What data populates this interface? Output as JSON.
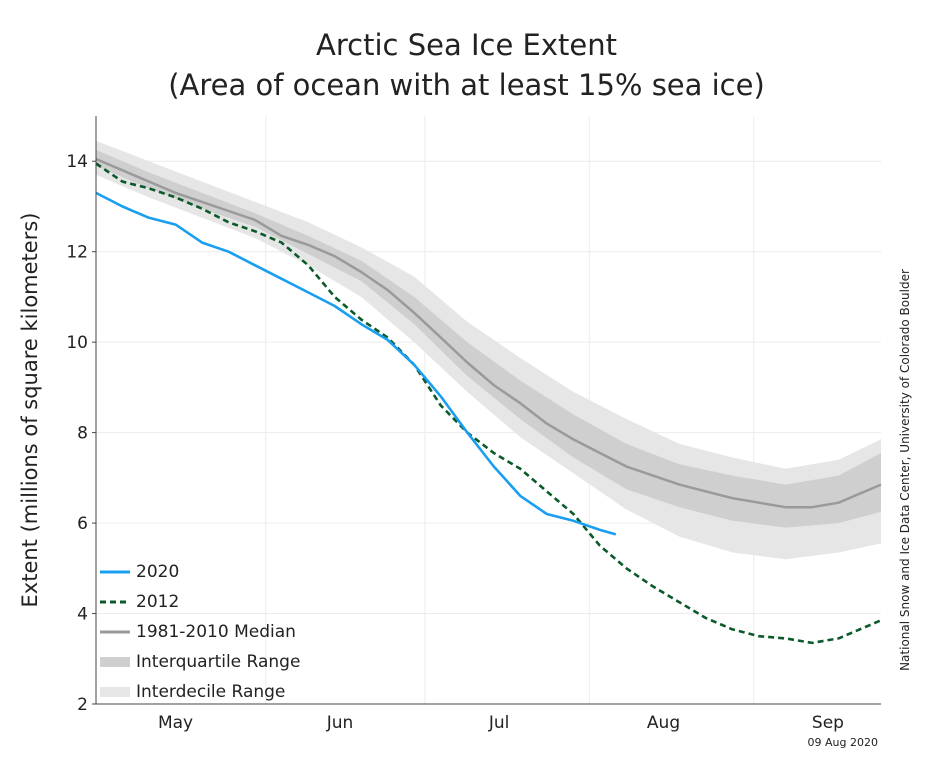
{
  "chart_data": {
    "type": "line",
    "title": "Arctic Sea Ice Extent",
    "subtitle": "(Area of ocean with at least 15% sea ice)",
    "ylabel": "Extent (millions of square kilometers)",
    "ylim": [
      2,
      15
    ],
    "yticks": [
      2,
      4,
      6,
      8,
      10,
      12,
      14
    ],
    "x_unit": "day of year",
    "xlim": [
      120,
      268
    ],
    "month_ticks": [
      {
        "label": "May",
        "day": 135
      },
      {
        "label": "Jun",
        "day": 166
      },
      {
        "label": "Jul",
        "day": 196
      },
      {
        "label": "Aug",
        "day": 227
      },
      {
        "label": "Sep",
        "day": 258
      }
    ],
    "month_boundaries": [
      152,
      182,
      213,
      244
    ],
    "colors": {
      "2020": "#1a9ff0",
      "2012": "#0b5a2a",
      "median": "#9a9a9a",
      "iqr": "#cfcfcf",
      "idr": "#e6e6e6",
      "grid": "#ececec"
    },
    "series": [
      {
        "name": "2020",
        "style": "solid",
        "x": [
          120,
          125,
          130,
          135,
          140,
          145,
          150,
          155,
          160,
          165,
          170,
          175,
          180,
          185,
          190,
          195,
          200,
          205,
          210,
          215,
          218
        ],
        "values": [
          13.3,
          13.0,
          12.75,
          12.6,
          12.2,
          12.0,
          11.7,
          11.4,
          11.1,
          10.8,
          10.4,
          10.05,
          9.5,
          8.8,
          8.0,
          7.25,
          6.6,
          6.2,
          6.05,
          5.85,
          5.75
        ]
      },
      {
        "name": "2012",
        "style": "dashed",
        "x": [
          120,
          125,
          130,
          135,
          140,
          145,
          150,
          155,
          160,
          165,
          170,
          175,
          180,
          185,
          190,
          195,
          200,
          205,
          210,
          215,
          220,
          225,
          230,
          235,
          240,
          245,
          250,
          255,
          260,
          268
        ],
        "values": [
          13.95,
          13.55,
          13.4,
          13.2,
          12.95,
          12.65,
          12.45,
          12.2,
          11.7,
          11.0,
          10.5,
          10.1,
          9.5,
          8.6,
          8.0,
          7.55,
          7.2,
          6.7,
          6.2,
          5.5,
          5.0,
          4.6,
          4.25,
          3.9,
          3.65,
          3.5,
          3.45,
          3.35,
          3.45,
          3.85
        ]
      },
      {
        "name": "1981-2010 Median",
        "style": "solid",
        "x": [
          120,
          125,
          130,
          135,
          140,
          145,
          150,
          155,
          160,
          165,
          170,
          175,
          180,
          185,
          190,
          195,
          200,
          205,
          210,
          215,
          220,
          225,
          230,
          235,
          240,
          245,
          250,
          255,
          260,
          265,
          268
        ],
        "values": [
          14.05,
          13.8,
          13.55,
          13.3,
          13.1,
          12.9,
          12.7,
          12.35,
          12.15,
          11.9,
          11.55,
          11.15,
          10.65,
          10.1,
          9.55,
          9.05,
          8.65,
          8.2,
          7.85,
          7.55,
          7.25,
          7.05,
          6.85,
          6.7,
          6.55,
          6.45,
          6.35,
          6.35,
          6.45,
          6.7,
          6.85
        ]
      }
    ],
    "bands": [
      {
        "name": "Interdecile Range",
        "x": [
          120,
          130,
          140,
          150,
          160,
          170,
          180,
          190,
          200,
          210,
          220,
          230,
          240,
          250,
          260,
          268
        ],
        "lower": [
          13.7,
          13.2,
          12.75,
          12.3,
          11.7,
          11.0,
          10.0,
          8.9,
          7.9,
          7.1,
          6.3,
          5.7,
          5.35,
          5.2,
          5.35,
          5.55
        ],
        "upper": [
          14.45,
          14.0,
          13.55,
          13.1,
          12.65,
          12.1,
          11.45,
          10.45,
          9.65,
          8.9,
          8.3,
          7.75,
          7.45,
          7.2,
          7.4,
          7.85
        ]
      },
      {
        "name": "Interquartile Range",
        "x": [
          120,
          130,
          140,
          150,
          160,
          170,
          180,
          190,
          200,
          210,
          220,
          230,
          240,
          250,
          260,
          268
        ],
        "lower": [
          13.9,
          13.4,
          12.95,
          12.55,
          11.95,
          11.35,
          10.4,
          9.25,
          8.3,
          7.45,
          6.75,
          6.35,
          6.05,
          5.9,
          6.0,
          6.25
        ],
        "upper": [
          14.25,
          13.75,
          13.3,
          12.85,
          12.35,
          11.8,
          11.0,
          10.0,
          9.15,
          8.4,
          7.75,
          7.3,
          7.05,
          6.85,
          7.05,
          7.55
        ]
      }
    ],
    "legend": {
      "position": "bottom-left",
      "entries": [
        "2020",
        "2012",
        "1981-2010 Median",
        "Interquartile Range",
        "Interdecile Range"
      ]
    }
  },
  "credit": "National Snow and Ice Data Center, University of Colorado Boulder",
  "date_stamp": "09 Aug 2020"
}
